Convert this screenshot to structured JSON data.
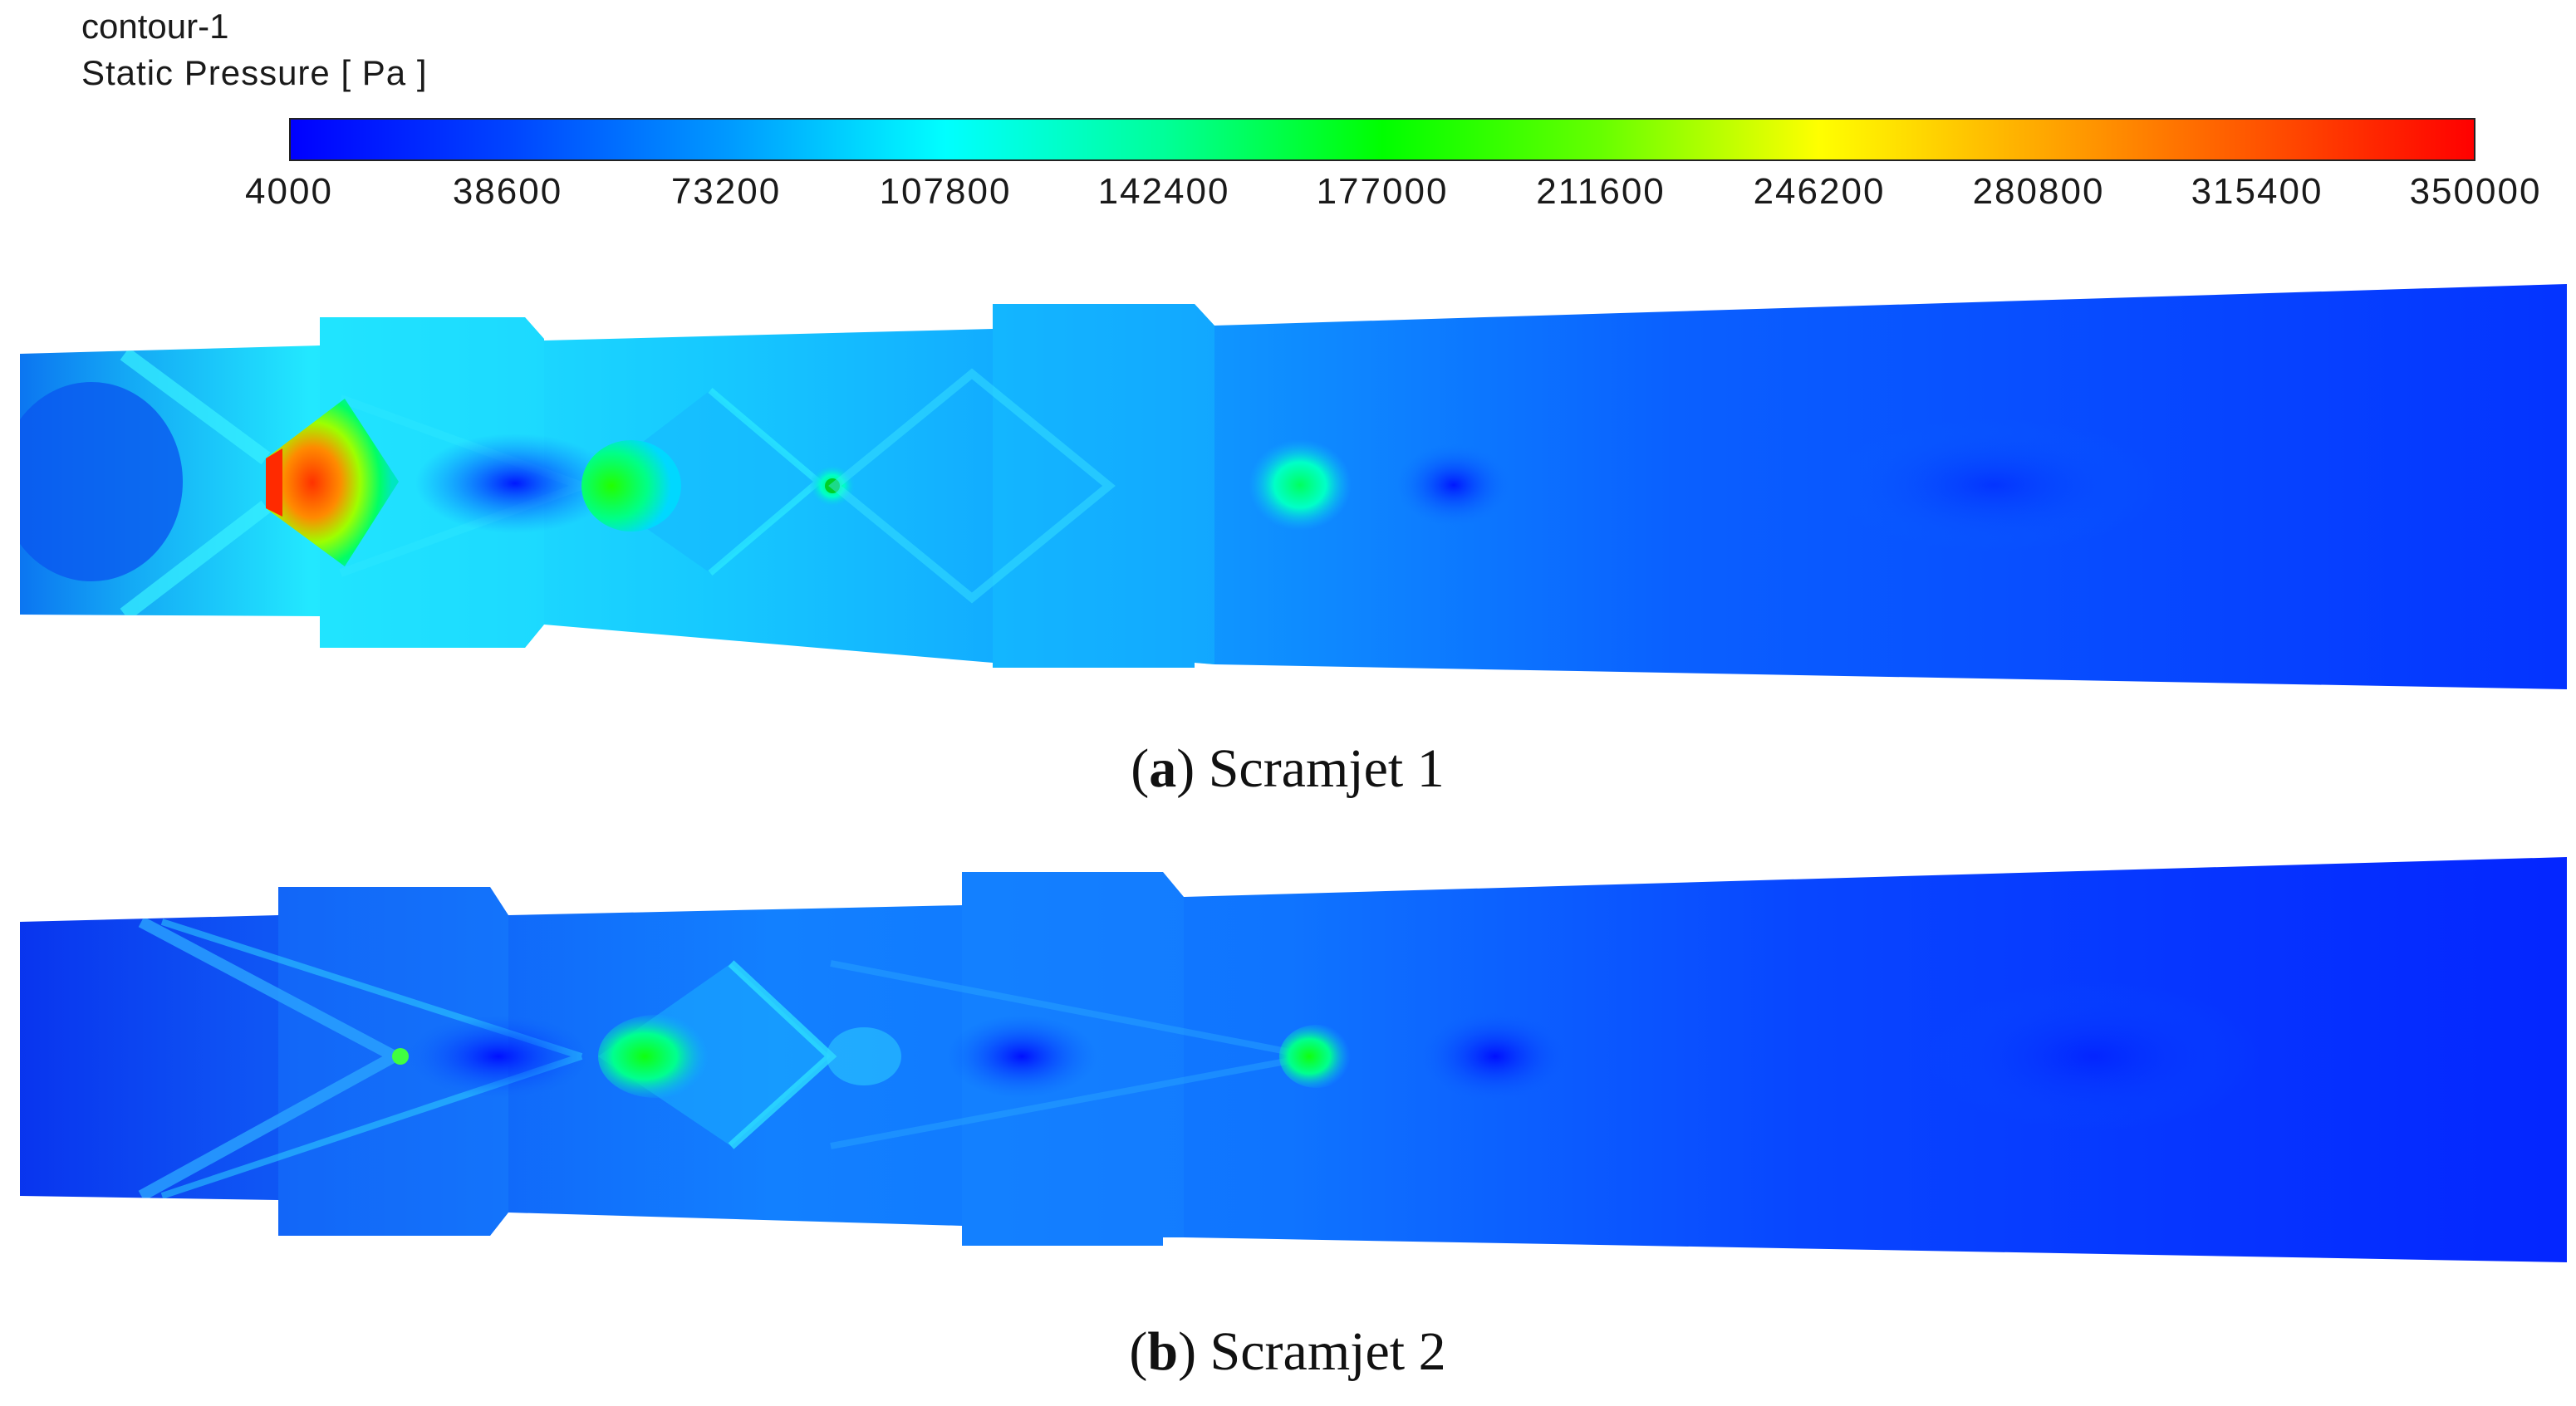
{
  "legend": {
    "name": "contour-1",
    "quantity": "Static Pressure [ Pa ]",
    "ticks": [
      "4000",
      "38600",
      "73200",
      "107800",
      "142400",
      "177000",
      "211600",
      "246200",
      "280800",
      "315400",
      "350000"
    ],
    "range": [
      4000,
      350000
    ],
    "colormap": [
      "#0000ff",
      "#0044ff",
      "#0099ff",
      "#00ffff",
      "#00ff99",
      "#00ff00",
      "#66ff00",
      "#ffff00",
      "#ffaa00",
      "#ff5500",
      "#ff0000"
    ]
  },
  "panels": [
    {
      "letter": "a",
      "title": "Scramjet 1"
    },
    {
      "letter": "b",
      "title": "Scramjet 2"
    }
  ],
  "caption_parens": {
    "open": "(",
    "close": ")"
  }
}
